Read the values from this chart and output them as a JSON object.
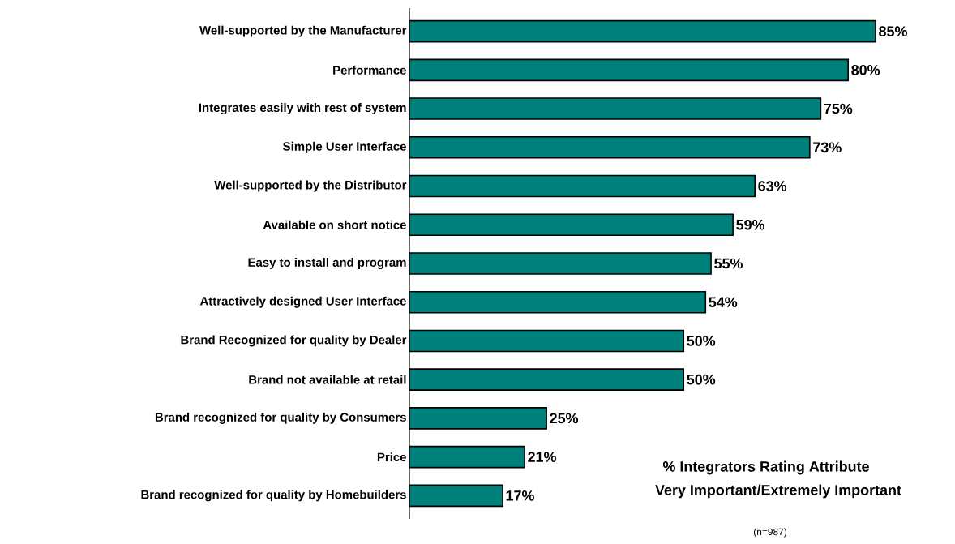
{
  "chart_data": {
    "type": "bar",
    "orientation": "horizontal",
    "title": "% Integrators Rating Attribute",
    "subtitle": "Very Important/Extremely Important",
    "categories": [
      "Well-supported by the Manufacturer",
      "Performance",
      "Integrates easily with rest of system",
      "Simple User Interface",
      "Well-supported by the Distributor",
      "Available on short notice",
      "Easy to install and program",
      "Attractively designed User Interface",
      "Brand Recognized for quality by Dealer",
      "Brand not available at retail",
      "Brand recognized for quality by Consumers",
      "Price",
      "Brand recognized for quality by Homebuilders"
    ],
    "values": [
      85,
      80,
      75,
      73,
      63,
      59,
      55,
      54,
      50,
      50,
      25,
      21,
      17
    ],
    "value_labels": [
      "85%",
      "80%",
      "75%",
      "73%",
      "63%",
      "59%",
      "55%",
      "54%",
      "50%",
      "50%",
      "25%",
      "21%",
      "17%"
    ],
    "color": "#00807a",
    "annotations": [
      "(n=987)"
    ]
  }
}
